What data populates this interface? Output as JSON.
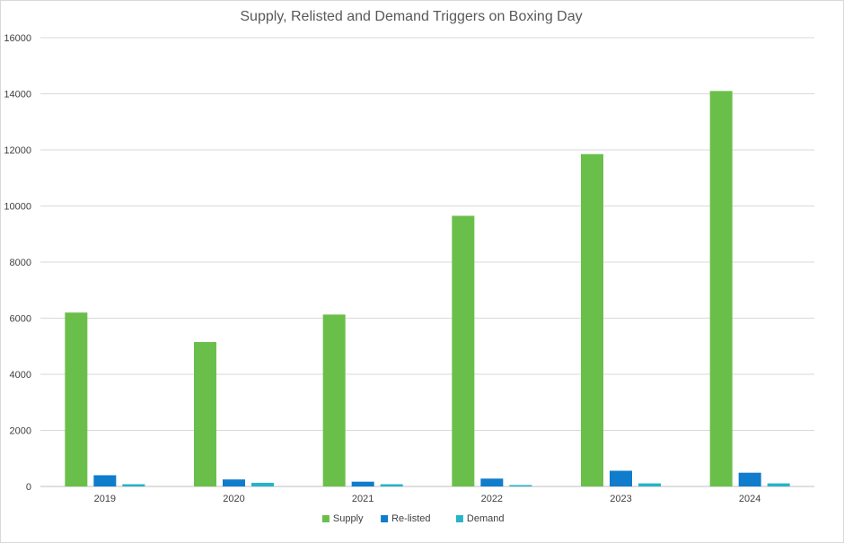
{
  "chart_data": {
    "type": "bar",
    "title": "Supply, Relisted and Demand Triggers on Boxing Day",
    "xlabel": "",
    "ylabel": "",
    "categories": [
      "2019",
      "2020",
      "2021",
      "2022",
      "2023",
      "2024"
    ],
    "ylim": [
      0,
      16000
    ],
    "yticks": [
      0,
      2000,
      4000,
      6000,
      8000,
      10000,
      12000,
      14000,
      16000
    ],
    "grid": true,
    "legend_position": "bottom",
    "series": [
      {
        "name": "Supply",
        "color": "#6abf4b",
        "values": [
          6200,
          5150,
          6130,
          9650,
          11850,
          14100
        ]
      },
      {
        "name": "Re-listed",
        "color": "#0f7ccc",
        "values": [
          400,
          250,
          170,
          280,
          560,
          490
        ]
      },
      {
        "name": "Demand",
        "color": "#27b3c9",
        "values": [
          80,
          130,
          80,
          50,
          110,
          110
        ]
      }
    ]
  }
}
